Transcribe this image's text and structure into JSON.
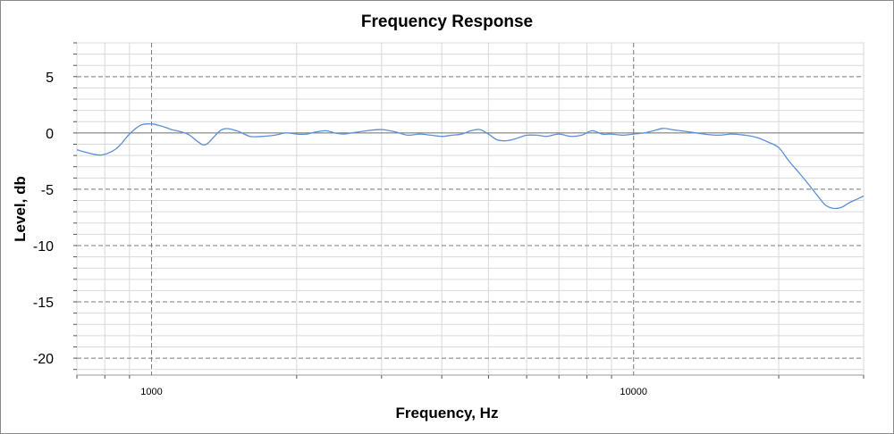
{
  "chart_data": {
    "type": "line",
    "title": "Frequency Response",
    "xlabel": "Frequency, Hz",
    "ylabel": "Level, db",
    "x_scale": "log",
    "xlim": [
      700,
      30000
    ],
    "ylim": [
      -21.5,
      8
    ],
    "x_tick_labels": [
      "1000",
      "10000"
    ],
    "x_tick_values": [
      1000,
      10000
    ],
    "y_ticks": [
      5,
      0,
      -5,
      -10,
      -15,
      -20
    ],
    "y_tick_labels": [
      "5",
      "0",
      "-5",
      "-10",
      "-15",
      "-20"
    ],
    "grid": true,
    "colors": {
      "series": "#5b8fd6",
      "major_grid": "#7a7a7a",
      "minor_grid": "#d9d9d9",
      "zero_line": "#6e6e6e",
      "frame": "#8a8a8a"
    },
    "series": [
      {
        "x": [
          700,
          760,
          800,
          850,
          900,
          950,
          1000,
          1050,
          1100,
          1150,
          1200,
          1250,
          1300,
          1400,
          1500,
          1600,
          1700,
          1800,
          1900,
          2000,
          2100,
          2200,
          2300,
          2400,
          2500,
          2600,
          2800,
          3000,
          3200,
          3400,
          3600,
          3800,
          4000,
          4200,
          4400,
          4600,
          4800,
          5000,
          5200,
          5400,
          5600,
          5800,
          6000,
          6300,
          6600,
          7000,
          7400,
          7800,
          8200,
          8600,
          9000,
          9500,
          10000,
          10500,
          11000,
          11500,
          12000,
          12500,
          13000,
          14000,
          15000,
          16000,
          17000,
          18000,
          19000,
          20000,
          21000,
          22000,
          23000,
          24000,
          25000,
          26000,
          27000,
          28000,
          29000,
          30000
        ],
        "values": [
          -1.5,
          -1.9,
          -1.9,
          -1.3,
          -0.1,
          0.7,
          0.8,
          0.6,
          0.3,
          0.1,
          -0.2,
          -0.8,
          -1.0,
          0.3,
          0.2,
          -0.3,
          -0.3,
          -0.2,
          0.0,
          -0.1,
          -0.1,
          0.1,
          0.2,
          0.0,
          -0.1,
          0.0,
          0.2,
          0.3,
          0.1,
          -0.2,
          -0.1,
          -0.2,
          -0.3,
          -0.2,
          -0.1,
          0.2,
          0.3,
          -0.1,
          -0.6,
          -0.7,
          -0.6,
          -0.4,
          -0.2,
          -0.2,
          -0.3,
          -0.1,
          -0.3,
          -0.2,
          0.2,
          -0.1,
          -0.1,
          -0.2,
          -0.1,
          0.0,
          0.2,
          0.4,
          0.3,
          0.2,
          0.1,
          -0.1,
          -0.2,
          -0.1,
          -0.2,
          -0.4,
          -0.8,
          -1.3,
          -2.5,
          -3.5,
          -4.5,
          -5.5,
          -6.4,
          -6.7,
          -6.6,
          -6.2,
          -5.9,
          -5.6
        ]
      }
    ]
  }
}
